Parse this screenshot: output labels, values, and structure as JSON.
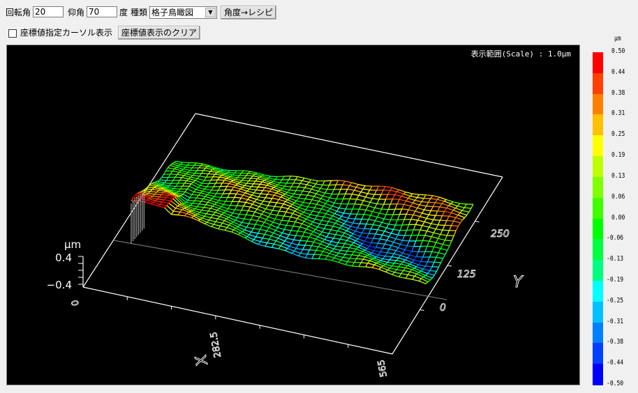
{
  "toolbar": {
    "rotation_label": "回転角",
    "rotation_value": "20",
    "elevation_label": "仰角",
    "elevation_value": "70",
    "degree_unit": "度",
    "type_label": "種類",
    "type_selected": "格子鳥瞰図",
    "angle_recipe_button": "角度→レシピ",
    "cursor_checkbox_label": "座標値指定カーソル表示",
    "cursor_checkbox_checked": false,
    "clear_coords_button": "座標値表示のクリア"
  },
  "plot": {
    "scale_text": "表示範囲(Scale) :    1.0μm",
    "z_unit": "μm",
    "z_ticks": [
      "0.4",
      "−0.4"
    ],
    "x_axis_label": "X",
    "x_ticks": [
      "0",
      "282.5",
      "565"
    ],
    "y_axis_label": "Y",
    "y_ticks": [
      "0",
      "125",
      "250"
    ]
  },
  "colorbar": {
    "unit": "μm",
    "labels": [
      "0.50",
      "0.44",
      "0.38",
      "0.31",
      "0.25",
      "0.19",
      "0.13",
      "0.06",
      "0.00",
      "-0.06",
      "-0.13",
      "-0.19",
      "-0.25",
      "-0.31",
      "-0.38",
      "-0.44",
      "-0.50"
    ],
    "colors": [
      "#ff0000",
      "#ff4000",
      "#ff8000",
      "#ffc000",
      "#ffff00",
      "#c0ff00",
      "#80ff00",
      "#40ff00",
      "#00ff00",
      "#00ff40",
      "#00ff80",
      "#00ffff",
      "#00c0ff",
      "#0080ff",
      "#0040ff",
      "#0000ff"
    ]
  }
}
